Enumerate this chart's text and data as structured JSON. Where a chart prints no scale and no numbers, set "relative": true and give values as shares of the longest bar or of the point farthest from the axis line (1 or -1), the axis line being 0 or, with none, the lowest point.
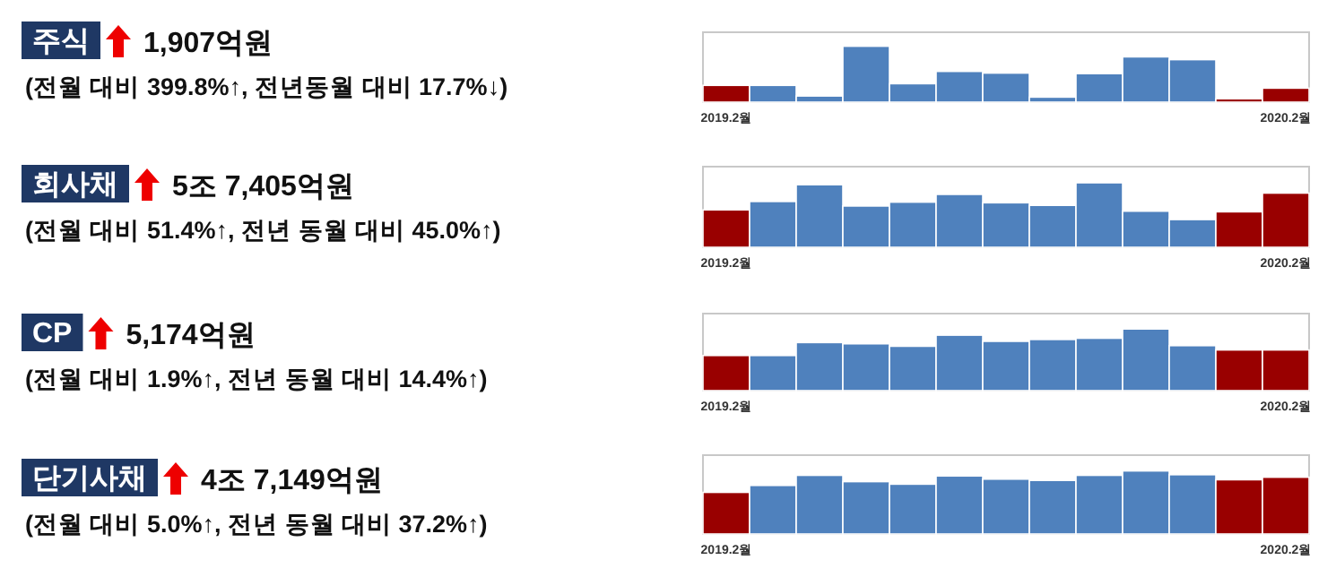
{
  "chart_data": [
    {
      "type": "other",
      "title": "주식",
      "annotations": [
        "1,907억원",
        "(전월 대비 399.8%↑, 전년동월 대비 17.7%↓)"
      ]
    },
    {
      "type": "bar",
      "relative": true,
      "categories": [
        "2019.2월",
        null,
        null,
        null,
        null,
        null,
        null,
        null,
        null,
        null,
        null,
        null,
        "2020.2월"
      ],
      "values": [
        0.3,
        0.3,
        0.11,
        1,
        0.33,
        0.55,
        0.52,
        0.09,
        0.51,
        0.81,
        0.76,
        0.06,
        0.25
      ],
      "colors": [
        "#990000",
        "#4f81bd",
        "#4f81bd",
        "#4f81bd",
        "#4f81bd",
        "#4f81bd",
        "#4f81bd",
        "#4f81bd",
        "#4f81bd",
        "#4f81bd",
        "#4f81bd",
        "#990000",
        "#990000"
      ]
    },
    {
      "type": "other",
      "title": "회사채",
      "annotations": [
        "5조 7,405억원",
        "(전월 대비 51.4%↑, 전년 동월 대비 45.0%↑)"
      ]
    },
    {
      "type": "bar",
      "relative": true,
      "categories": [
        "2019.2월",
        null,
        null,
        null,
        null,
        null,
        null,
        null,
        null,
        null,
        null,
        null,
        "2020.2월"
      ],
      "values": [
        0.58,
        0.71,
        0.97,
        0.64,
        0.7,
        0.82,
        0.69,
        0.65,
        1,
        0.56,
        0.43,
        0.55,
        0.84
      ],
      "colors": [
        "#990000",
        "#4f81bd",
        "#4f81bd",
        "#4f81bd",
        "#4f81bd",
        "#4f81bd",
        "#4f81bd",
        "#4f81bd",
        "#4f81bd",
        "#4f81bd",
        "#4f81bd",
        "#990000",
        "#990000"
      ]
    },
    {
      "type": "other",
      "title": "CP",
      "annotations": [
        "5,174억원",
        "(전월 대비 1.9%↑, 전년 동월 대비 14.4%↑)"
      ]
    },
    {
      "type": "bar",
      "relative": true,
      "categories": [
        "2019.2월",
        null,
        null,
        null,
        null,
        null,
        null,
        null,
        null,
        null,
        null,
        null,
        "2020.2월"
      ],
      "values": [
        0.57,
        0.57,
        0.78,
        0.76,
        0.72,
        0.9,
        0.8,
        0.83,
        0.85,
        1,
        0.73,
        0.66,
        0.66
      ],
      "colors": [
        "#990000",
        "#4f81bd",
        "#4f81bd",
        "#4f81bd",
        "#4f81bd",
        "#4f81bd",
        "#4f81bd",
        "#4f81bd",
        "#4f81bd",
        "#4f81bd",
        "#4f81bd",
        "#990000",
        "#990000"
      ]
    },
    {
      "type": "other",
      "title": "단기사채",
      "annotations": [
        "4조 7,149억원",
        "(전월 대비 5.0%↑, 전년 동월 대비 37.2%↑)"
      ]
    },
    {
      "type": "bar",
      "relative": true,
      "categories": [
        "2019.2월",
        null,
        null,
        null,
        null,
        null,
        null,
        null,
        null,
        null,
        null,
        null,
        "2020.2월"
      ],
      "values": [
        0.66,
        0.77,
        0.93,
        0.83,
        0.79,
        0.92,
        0.87,
        0.85,
        0.93,
        1,
        0.94,
        0.86,
        0.9
      ],
      "colors": [
        "#990000",
        "#4f81bd",
        "#4f81bd",
        "#4f81bd",
        "#4f81bd",
        "#4f81bd",
        "#4f81bd",
        "#4f81bd",
        "#4f81bd",
        "#4f81bd",
        "#4f81bd",
        "#990000",
        "#990000"
      ]
    }
  ]
}
